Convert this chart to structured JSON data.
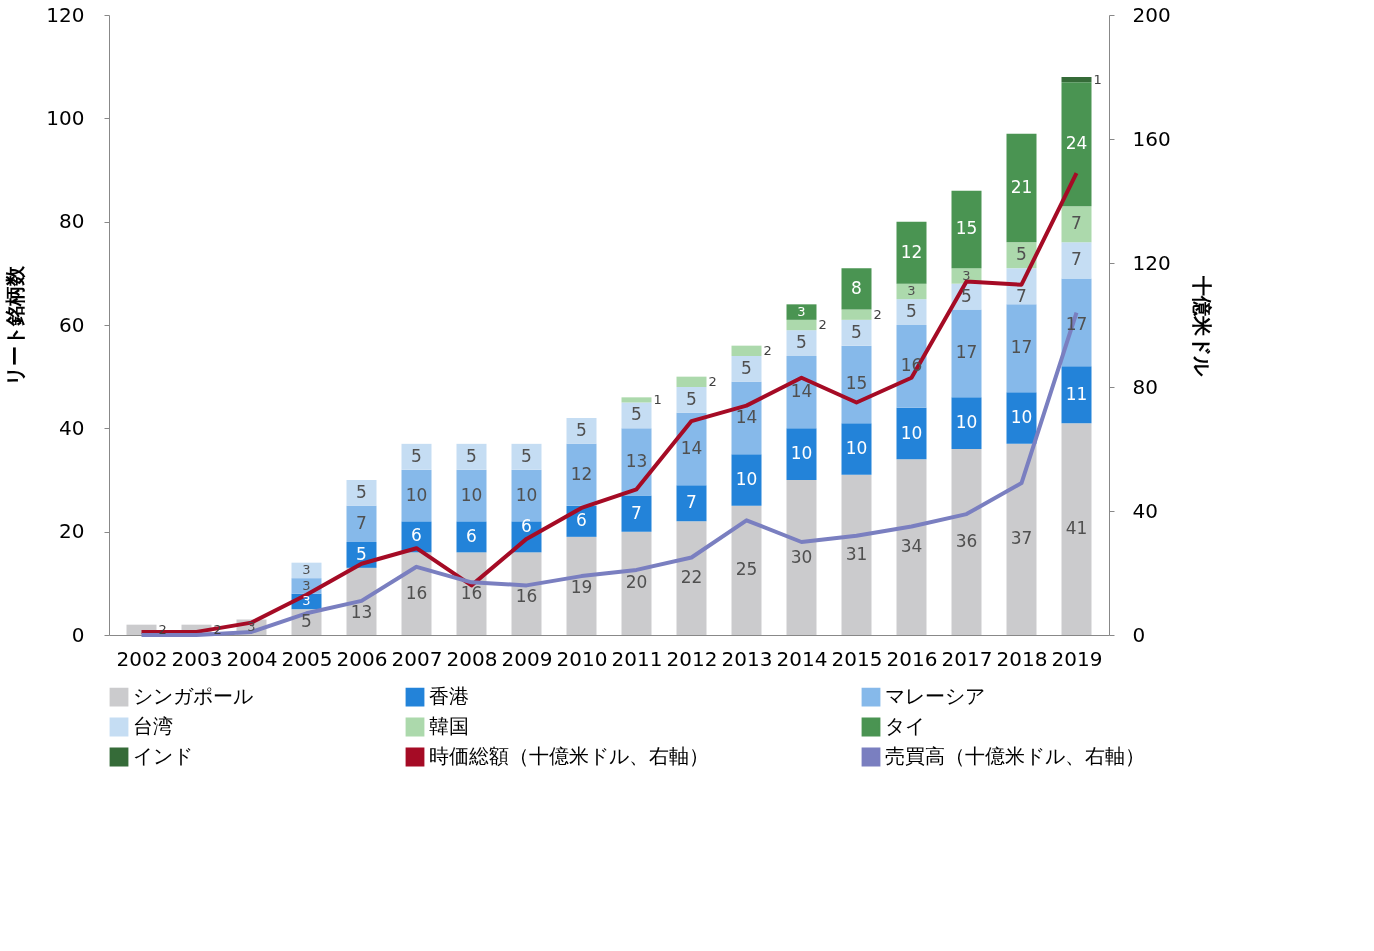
{
  "chart_data": {
    "type": "bar",
    "stacked": true,
    "ylabel": "リート銘柄数",
    "y2label": "十億米ドル",
    "categories": [
      "2002",
      "2003",
      "2004",
      "2005",
      "2006",
      "2007",
      "2008",
      "2009",
      "2010",
      "2011",
      "2012",
      "2013",
      "2014",
      "2015",
      "2016",
      "2017",
      "2018",
      "2019"
    ],
    "ylim": [
      0,
      120
    ],
    "yticks": [
      0,
      20,
      40,
      60,
      80,
      100,
      120
    ],
    "y2lim": [
      0,
      200
    ],
    "y2ticks": [
      0,
      40,
      80,
      120,
      160,
      200
    ],
    "legend": "bottom",
    "grid": false,
    "marker": "none",
    "line_style": "solid",
    "series": [
      {
        "name": "シンガポール",
        "color": "#cbcbcd",
        "values": [
          2,
          2,
          3,
          5,
          13,
          16,
          16,
          16,
          19,
          20,
          22,
          25,
          30,
          31,
          34,
          36,
          37,
          41
        ],
        "value_labels": [
          "2",
          "2",
          "3",
          "5",
          "13",
          "16",
          "16",
          "16",
          "19",
          "20",
          "22",
          "25",
          "30",
          "31",
          "34",
          "36",
          "37",
          "41"
        ]
      },
      {
        "name": "香港",
        "color": "#2383d9",
        "values": [
          null,
          null,
          null,
          3,
          5,
          6,
          6,
          6,
          6,
          7,
          7,
          10,
          10,
          10,
          10,
          10,
          10,
          11
        ],
        "value_labels": [
          null,
          null,
          null,
          "3",
          "5",
          "6",
          "6",
          "6",
          "6",
          "7",
          "7",
          "10",
          "10",
          "10",
          "10",
          "10",
          "10",
          "11"
        ]
      },
      {
        "name": "マレーシア",
        "color": "#86b9ea",
        "values": [
          null,
          null,
          null,
          3,
          7,
          10,
          10,
          10,
          12,
          13,
          14,
          14,
          14,
          15,
          16,
          17,
          17,
          17
        ],
        "value_labels": [
          null,
          null,
          null,
          "3",
          "7",
          "10",
          "10",
          "10",
          "12",
          "13",
          "14",
          "14",
          "14",
          "15",
          "16",
          "17",
          "17",
          "17"
        ]
      },
      {
        "name": "台湾",
        "color": "#c5ddf3",
        "values": [
          null,
          null,
          null,
          3,
          5,
          5,
          5,
          5,
          5,
          5,
          5,
          5,
          5,
          5,
          5,
          5,
          7,
          7
        ],
        "value_labels": [
          null,
          null,
          null,
          "3",
          "5",
          "5",
          "5",
          "5",
          "5",
          "5",
          "5",
          "5",
          "5",
          "5",
          "5",
          "5",
          "7",
          "7"
        ]
      },
      {
        "name": "韓国",
        "color": "#acd9ac",
        "values": [
          null,
          null,
          null,
          null,
          null,
          null,
          null,
          null,
          null,
          1,
          2,
          2,
          2,
          2,
          3,
          3,
          5,
          7
        ],
        "value_labels": [
          null,
          null,
          null,
          null,
          null,
          null,
          null,
          null,
          null,
          "1",
          "2",
          "2",
          "2",
          "2",
          "3",
          "3",
          "5",
          "7"
        ]
      },
      {
        "name": "タイ",
        "color": "#4a9452",
        "values": [
          null,
          null,
          null,
          null,
          null,
          null,
          null,
          null,
          null,
          null,
          null,
          null,
          3,
          8,
          12,
          15,
          21,
          24
        ],
        "value_labels": [
          null,
          null,
          null,
          null,
          null,
          null,
          null,
          null,
          null,
          null,
          null,
          null,
          "3",
          "8",
          "12",
          "15",
          "21",
          "24"
        ]
      },
      {
        "name": "インド",
        "color": "#356b38",
        "values": [
          null,
          null,
          null,
          null,
          null,
          null,
          null,
          null,
          null,
          null,
          null,
          null,
          null,
          null,
          null,
          null,
          null,
          1
        ],
        "value_labels": [
          null,
          null,
          null,
          null,
          null,
          null,
          null,
          null,
          null,
          null,
          null,
          null,
          null,
          null,
          null,
          null,
          null,
          "1"
        ]
      },
      {
        "name": "時価総額（十億米ドル、右軸）",
        "color": "#a50b25",
        "type": "line",
        "axis": "y2",
        "values": [
          1,
          1,
          4,
          13,
          23,
          28,
          16,
          31,
          41,
          47,
          69,
          74,
          83,
          75,
          83,
          114,
          113,
          149
        ]
      },
      {
        "name": "売買高（十億米ドル、右軸）",
        "color": "#7a7fc0",
        "type": "line",
        "axis": "y2",
        "values": [
          0,
          0,
          1,
          7,
          11,
          22,
          17,
          16,
          19,
          21,
          25,
          37,
          30,
          32,
          35,
          39,
          49,
          104
        ]
      }
    ]
  }
}
